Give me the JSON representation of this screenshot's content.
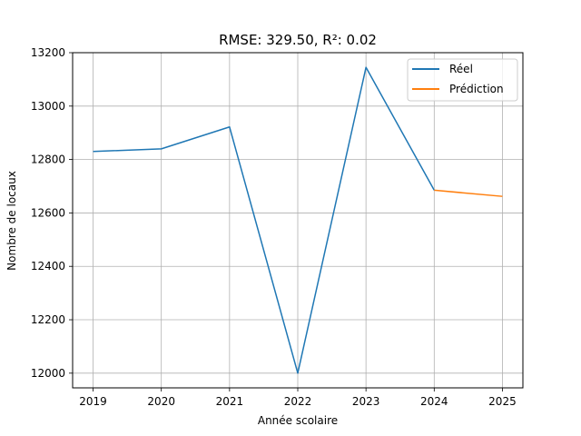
{
  "chart_data": {
    "type": "line",
    "title": "RMSE: 329.50, R²: 0.02",
    "xlabel": "Année scolaire",
    "ylabel": "Nombre de locaux",
    "xlim": [
      2018.7,
      2025.3
    ],
    "ylim": [
      11945,
      13200
    ],
    "x_ticks": [
      2019,
      2020,
      2021,
      2022,
      2023,
      2024,
      2025
    ],
    "y_ticks": [
      12000,
      12200,
      12400,
      12600,
      12800,
      13000,
      13200
    ],
    "grid": true,
    "legend_position": "top-right",
    "series": [
      {
        "name": "Réel",
        "color": "#1f77b4",
        "x": [
          2019,
          2020,
          2021,
          2022,
          2023,
          2024
        ],
        "y": [
          12830,
          12840,
          12922,
          12000,
          13145,
          12685
        ]
      },
      {
        "name": "Prédiction",
        "color": "#ff7f0e",
        "x": [
          2024,
          2025
        ],
        "y": [
          12685,
          12662
        ]
      }
    ]
  }
}
